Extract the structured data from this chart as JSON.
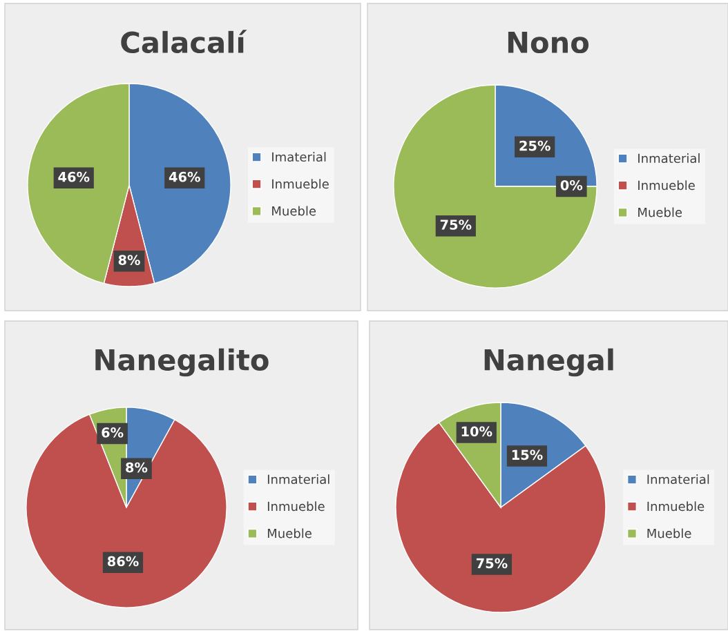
{
  "chart_data": [
    {
      "type": "pie",
      "title": "Calacalí",
      "categories": [
        "Imaterial",
        "Inmueble",
        "Mueble"
      ],
      "values": [
        46,
        8,
        46
      ],
      "colors": [
        "#4f81bd",
        "#c0504d",
        "#9bbb59"
      ],
      "value_labels": [
        "46%",
        "8%",
        "46%"
      ],
      "legend": "right"
    },
    {
      "type": "pie",
      "title": "Nono",
      "categories": [
        "Inmaterial",
        "Inmueble",
        "Mueble"
      ],
      "values": [
        25,
        0,
        75
      ],
      "colors": [
        "#4f81bd",
        "#c0504d",
        "#9bbb59"
      ],
      "value_labels": [
        "25%",
        "0%",
        "75%"
      ],
      "legend": "right"
    },
    {
      "type": "pie",
      "title": "Nanegalito",
      "categories": [
        "Inmaterial",
        "Inmueble",
        "Mueble"
      ],
      "values": [
        8,
        86,
        6
      ],
      "colors": [
        "#4f81bd",
        "#c0504d",
        "#9bbb59"
      ],
      "value_labels": [
        "8%",
        "86%",
        "6%"
      ],
      "legend": "right"
    },
    {
      "type": "pie",
      "title": "Nanegal",
      "categories": [
        "Inmaterial",
        "Inmueble",
        "Mueble"
      ],
      "values": [
        15,
        75,
        10
      ],
      "colors": [
        "#4f81bd",
        "#c0504d",
        "#9bbb59"
      ],
      "value_labels": [
        "15%",
        "75%",
        "10%"
      ],
      "legend": "right"
    }
  ]
}
